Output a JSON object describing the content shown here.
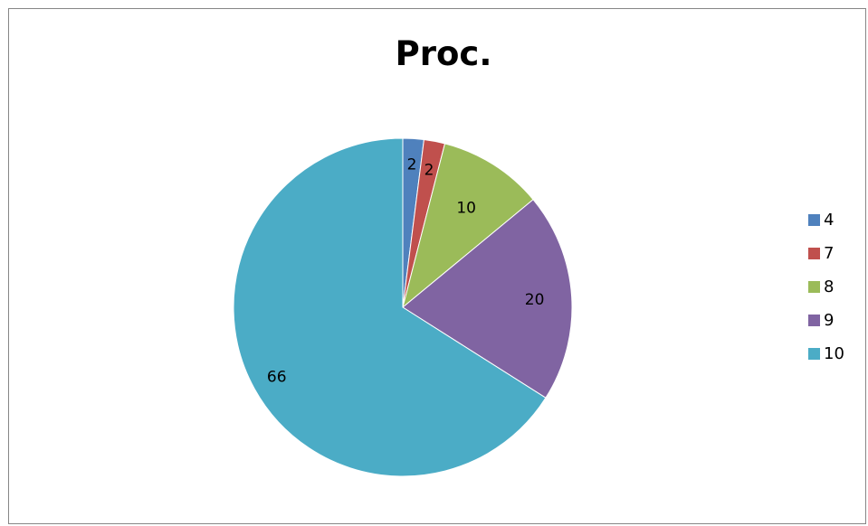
{
  "chart_data": {
    "type": "pie",
    "title": "Proc.",
    "categories": [
      "4",
      "7",
      "8",
      "9",
      "10"
    ],
    "values": [
      2,
      2,
      10,
      20,
      66
    ],
    "data_labels": [
      "2",
      "2",
      "10",
      "20",
      "66"
    ],
    "colors": [
      "#4F81BD",
      "#C0504D",
      "#9BBB59",
      "#8064A2",
      "#4BACC6"
    ],
    "start_angle": "12 o'clock",
    "direction": "clockwise",
    "legend_position": "right"
  }
}
